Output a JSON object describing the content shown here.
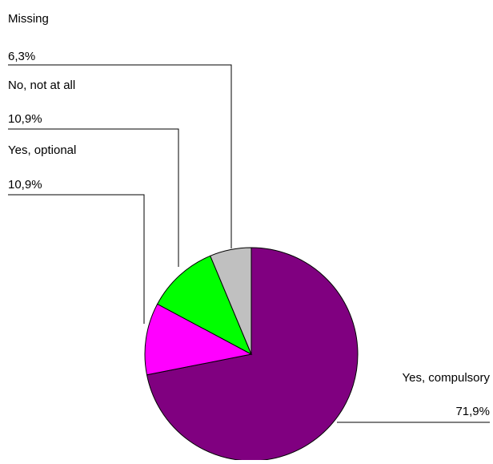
{
  "chart_data": {
    "type": "pie",
    "title": "",
    "slices": [
      {
        "label": "Yes, compulsory",
        "value": 71.9,
        "value_label": "71,9%",
        "color": "#800080"
      },
      {
        "label": "Yes, optional",
        "value": 10.9,
        "value_label": "10,9%",
        "color": "#ff00ff"
      },
      {
        "label": "No, not at all",
        "value": 10.9,
        "value_label": "10,9%",
        "color": "#00ff00"
      },
      {
        "label": "Missing",
        "value": 6.3,
        "value_label": "6,3%",
        "color": "#c0c0c0"
      }
    ],
    "legend": "none",
    "start_angle": "12 o'clock",
    "direction": "clockwise",
    "outline_color": "#000000",
    "leader_line_color": "#000000"
  }
}
